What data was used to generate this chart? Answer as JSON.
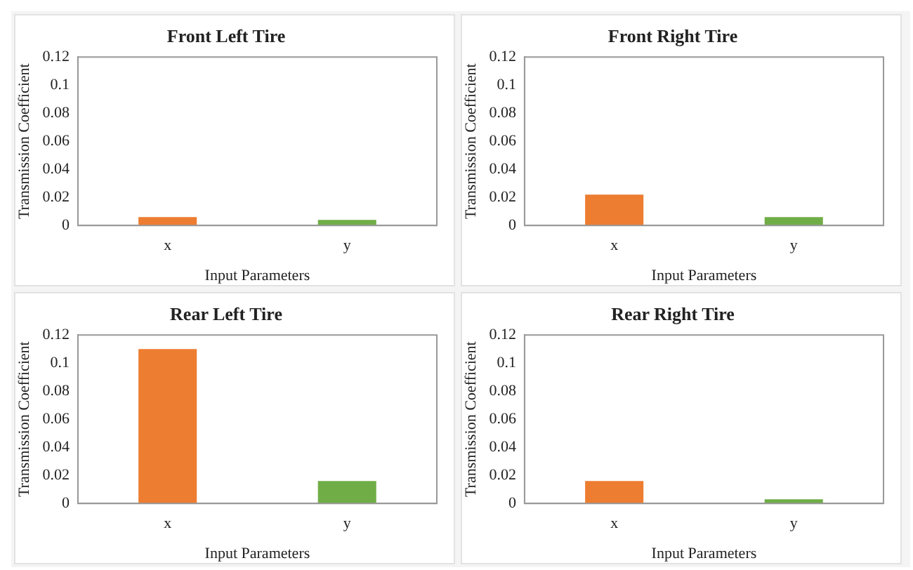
{
  "chart_data": [
    {
      "type": "bar",
      "title": "Front Left Tire",
      "xlabel": "Input Parameters",
      "ylabel": "Transmission Coefficient",
      "categories": [
        "x",
        "y"
      ],
      "values": [
        0.006,
        0.004
      ],
      "colors": [
        "#ed7d31",
        "#70ad47"
      ],
      "ylim": [
        0,
        0.12
      ],
      "yticks": [
        0,
        0.02,
        0.04,
        0.06,
        0.08,
        0.1,
        0.12
      ],
      "grid": false
    },
    {
      "type": "bar",
      "title": "Front Right Tire",
      "xlabel": "Input Parameters",
      "ylabel": "Transmission Coefficient",
      "categories": [
        "x",
        "y"
      ],
      "values": [
        0.022,
        0.006
      ],
      "colors": [
        "#ed7d31",
        "#70ad47"
      ],
      "ylim": [
        0,
        0.12
      ],
      "yticks": [
        0,
        0.02,
        0.04,
        0.06,
        0.08,
        0.1,
        0.12
      ],
      "grid": false
    },
    {
      "type": "bar",
      "title": "Rear Left Tire",
      "xlabel": "Input Parameters",
      "ylabel": "Transmission Coefficient",
      "categories": [
        "x",
        "y"
      ],
      "values": [
        0.11,
        0.016
      ],
      "colors": [
        "#ed7d31",
        "#70ad47"
      ],
      "ylim": [
        0,
        0.12
      ],
      "yticks": [
        0,
        0.02,
        0.04,
        0.06,
        0.08,
        0.1,
        0.12
      ],
      "grid": false
    },
    {
      "type": "bar",
      "title": "Rear Right Tire",
      "xlabel": "Input Parameters",
      "ylabel": "Transmission Coefficient",
      "categories": [
        "x",
        "y"
      ],
      "values": [
        0.016,
        0.003
      ],
      "colors": [
        "#ed7d31",
        "#70ad47"
      ],
      "ylim": [
        0,
        0.12
      ],
      "yticks": [
        0,
        0.02,
        0.04,
        0.06,
        0.08,
        0.1,
        0.12
      ],
      "grid": false
    }
  ]
}
